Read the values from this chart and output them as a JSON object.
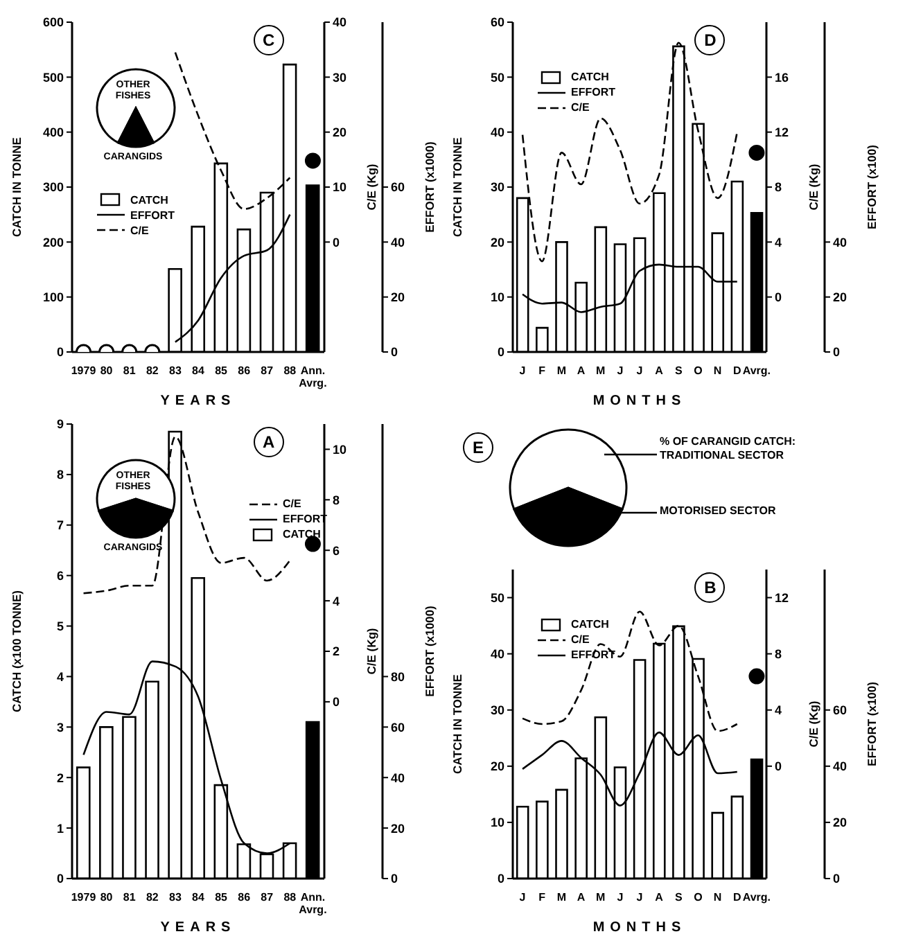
{
  "chart_data": [
    {
      "type": "bar",
      "title": "C",
      "xlabel": "YEARS",
      "ylabel": "CATCH IN TONNE",
      "y2label": "C/E (Kg)",
      "y3label": "EFFORT (x1000)",
      "legend": "left",
      "categories": [
        "1979",
        "80",
        "81",
        "82",
        "83",
        "84",
        "85",
        "86",
        "87",
        "88",
        "Ann. Avrg."
      ],
      "ylim": [
        0,
        600
      ],
      "yticks": [
        0,
        100,
        200,
        300,
        400,
        500,
        600
      ],
      "y2lim": [
        -20,
        40
      ],
      "y2ticks": [
        0,
        10,
        20,
        30,
        40
      ],
      "y3lim": [
        0,
        120
      ],
      "y3ticks": [
        0,
        20,
        40,
        60
      ],
      "series": [
        {
          "name": "CATCH",
          "type": "bar",
          "axis": "y",
          "colors": [
            "#ffffff",
            "#ffffff",
            "#ffffff",
            "#ffffff",
            "#ffffff",
            "#ffffff",
            "#ffffff",
            "#ffffff",
            "#ffffff",
            "#ffffff",
            "#000000"
          ],
          "values": [
            0,
            0,
            0,
            0,
            151,
            228,
            343,
            223,
            290,
            523,
            303
          ]
        },
        {
          "name": "EFFORT",
          "type": "line",
          "axis": "y3",
          "color": "#000000",
          "line_style": "solid",
          "values": [
            null,
            null,
            null,
            null,
            3.6,
            11.5,
            27,
            35,
            37,
            50,
            null
          ]
        },
        {
          "name": "C/E",
          "type": "line",
          "axis": "y2",
          "color": "#000000",
          "line_style": "dashed",
          "values": [
            null,
            null,
            null,
            null,
            34.5,
            23,
            13,
            6,
            8,
            11.7,
            null
          ]
        },
        {
          "type": "scatter",
          "axis": "y",
          "marker": "circle",
          "color": "#ffffff",
          "values": [
            0,
            0,
            0,
            0,
            null,
            null,
            null,
            null,
            null,
            null,
            null
          ]
        },
        {
          "type": "scatter",
          "axis": "y2",
          "marker": "circle",
          "color": "#000000",
          "values": [
            null,
            null,
            null,
            null,
            null,
            null,
            null,
            null,
            null,
            null,
            14.8
          ]
        }
      ]
    },
    {
      "type": "pie",
      "categories": [
        "OTHER FISHES",
        "CARANGIDS"
      ],
      "values": [
        85,
        15
      ],
      "colors": [
        "#ffffff",
        "#000000"
      ]
    },
    {
      "type": "bar",
      "title": "D",
      "xlabel": "MONTHS",
      "ylabel": "CATCH IN TONNE",
      "y2label": "C/E (Kg)",
      "y3label": "EFFORT (x100)",
      "legend": "top left",
      "categories": [
        "J",
        "F",
        "M",
        "A",
        "M",
        "J",
        "J",
        "A",
        "S",
        "O",
        "N",
        "D",
        "Avrg."
      ],
      "ylim": [
        0,
        60
      ],
      "yticks": [
        0,
        10,
        20,
        30,
        40,
        50,
        60
      ],
      "y2lim": [
        -4,
        20
      ],
      "y2ticks": [
        0,
        4,
        8,
        12,
        16
      ],
      "y3lim": [
        0,
        120
      ],
      "y3ticks": [
        0,
        20,
        40
      ],
      "series": [
        {
          "name": "CATCH",
          "type": "bar",
          "axis": "y",
          "colors": [
            "#ffffff",
            "#ffffff",
            "#ffffff",
            "#ffffff",
            "#ffffff",
            "#ffffff",
            "#ffffff",
            "#ffffff",
            "#ffffff",
            "#ffffff",
            "#ffffff",
            "#ffffff",
            "#000000"
          ],
          "values": [
            28,
            4.4,
            20,
            12.6,
            22.7,
            19.6,
            20.7,
            28.9,
            55.6,
            41.5,
            21.6,
            31,
            25.3
          ]
        },
        {
          "name": "EFFORT",
          "type": "line",
          "axis": "y3",
          "color": "#000000",
          "line_style": "solid",
          "values": [
            21,
            17.6,
            18,
            14.5,
            16.4,
            17.6,
            29.5,
            31.8,
            31,
            31,
            25.6,
            25.6,
            null
          ]
        },
        {
          "name": "C/E",
          "type": "line",
          "axis": "y2",
          "color": "#000000",
          "line_style": "dashed",
          "values": [
            11.8,
            2.6,
            10.5,
            8.2,
            13,
            10.7,
            6.8,
            8.9,
            18.5,
            12.1,
            7.2,
            12,
            null
          ]
        },
        {
          "type": "scatter",
          "axis": "y2",
          "marker": "circle",
          "color": "#000000",
          "values": [
            null,
            null,
            null,
            null,
            null,
            null,
            null,
            null,
            null,
            null,
            null,
            null,
            10.5
          ]
        }
      ]
    },
    {
      "type": "pie",
      "title": "E",
      "subtitle": "% OF CARANGID CATCH:",
      "categories": [
        "TRADITIONAL SECTOR",
        "MOTORISED SECTOR"
      ],
      "values": [
        62,
        38
      ],
      "colors": [
        "#ffffff",
        "#000000"
      ]
    },
    {
      "type": "bar",
      "title": "A",
      "xlabel": "YEARS",
      "ylabel": "CATCH (x100 TONNE)",
      "y2label": "C/E (Kg)",
      "y3label": "EFFORT (x1000)",
      "legend": "top right",
      "categories": [
        "1979",
        "80",
        "81",
        "82",
        "83",
        "84",
        "85",
        "86",
        "87",
        "88",
        "Ann. Avrg."
      ],
      "ylim": [
        0,
        9
      ],
      "yticks": [
        0,
        1,
        2,
        3,
        4,
        5,
        6,
        7,
        8,
        9
      ],
      "y2lim": [
        -7,
        11
      ],
      "y2ticks": [
        0,
        2,
        4,
        6,
        8,
        10
      ],
      "y3lim": [
        0,
        180
      ],
      "y3ticks": [
        0,
        20,
        40,
        60,
        80
      ],
      "series": [
        {
          "name": "C/E",
          "type": "line",
          "axis": "y2",
          "color": "#000000",
          "line_style": "dashed",
          "values": [
            4.3,
            4.4,
            4.6,
            4.6,
            10.5,
            7.5,
            5.5,
            5.7,
            4.8,
            5.6,
            null
          ]
        },
        {
          "name": "EFFORT",
          "type": "line",
          "axis": "y3",
          "color": "#000000",
          "line_style": "solid",
          "values": [
            49,
            66,
            65,
            86,
            84,
            72,
            39,
            14,
            10,
            14,
            null
          ]
        },
        {
          "name": "CATCH",
          "type": "bar",
          "axis": "y",
          "colors": [
            "#ffffff",
            "#ffffff",
            "#ffffff",
            "#ffffff",
            "#ffffff",
            "#ffffff",
            "#ffffff",
            "#ffffff",
            "#ffffff",
            "#ffffff",
            "#000000"
          ],
          "values": [
            2.2,
            3.0,
            3.2,
            3.9,
            8.85,
            5.95,
            1.85,
            0.68,
            0.48,
            0.7,
            3.1
          ]
        },
        {
          "type": "scatter",
          "axis": "y2",
          "marker": "circle",
          "color": "#000000",
          "values": [
            null,
            null,
            null,
            null,
            null,
            null,
            null,
            null,
            null,
            null,
            6.25
          ]
        }
      ]
    },
    {
      "type": "pie",
      "categories": [
        "OTHER FISHES",
        "CARANGIDS"
      ],
      "values": [
        60,
        40
      ],
      "colors": [
        "#ffffff",
        "#000000"
      ]
    },
    {
      "type": "bar",
      "title": "B",
      "xlabel": "MONTHS",
      "ylabel": "CATCH IN TONNE",
      "y2label": "C/E (Kg)",
      "y3label": "EFFORT (x100)",
      "legend": "top left",
      "categories": [
        "J",
        "F",
        "M",
        "A",
        "M",
        "J",
        "J",
        "A",
        "S",
        "O",
        "N",
        "D",
        "Avrg."
      ],
      "ylim": [
        0,
        55
      ],
      "yticks": [
        0,
        10,
        20,
        30,
        40,
        50
      ],
      "y2lim": [
        -8,
        14
      ],
      "y2ticks": [
        0,
        4,
        8,
        12
      ],
      "y3lim": [
        0,
        110
      ],
      "y3ticks": [
        0,
        20,
        40,
        60
      ],
      "series": [
        {
          "name": "CATCH",
          "type": "bar",
          "axis": "y",
          "colors": [
            "#ffffff",
            "#ffffff",
            "#ffffff",
            "#ffffff",
            "#ffffff",
            "#ffffff",
            "#ffffff",
            "#ffffff",
            "#ffffff",
            "#ffffff",
            "#ffffff",
            "#ffffff",
            "#000000"
          ],
          "values": [
            12.8,
            13.7,
            15.8,
            21.4,
            28.7,
            19.8,
            38.9,
            41.8,
            44.9,
            39.1,
            11.7,
            14.6,
            21.2
          ]
        },
        {
          "name": "C/E",
          "type": "line",
          "axis": "y2",
          "color": "#000000",
          "line_style": "dashed",
          "values": [
            3.4,
            3.0,
            3.2,
            5.4,
            8.7,
            7.8,
            11,
            8.6,
            10,
            6.4,
            2.5,
            3.0,
            null
          ]
        },
        {
          "name": "EFFORT",
          "type": "line",
          "axis": "y3",
          "color": "#000000",
          "line_style": "solid",
          "values": [
            39,
            44,
            49,
            43,
            37,
            26,
            37.5,
            52,
            44,
            51,
            37.5,
            38,
            null
          ]
        },
        {
          "type": "scatter",
          "axis": "y2",
          "marker": "circle",
          "color": "#000000",
          "values": [
            null,
            null,
            null,
            null,
            null,
            null,
            null,
            null,
            null,
            null,
            null,
            null,
            6.4
          ]
        }
      ]
    }
  ]
}
